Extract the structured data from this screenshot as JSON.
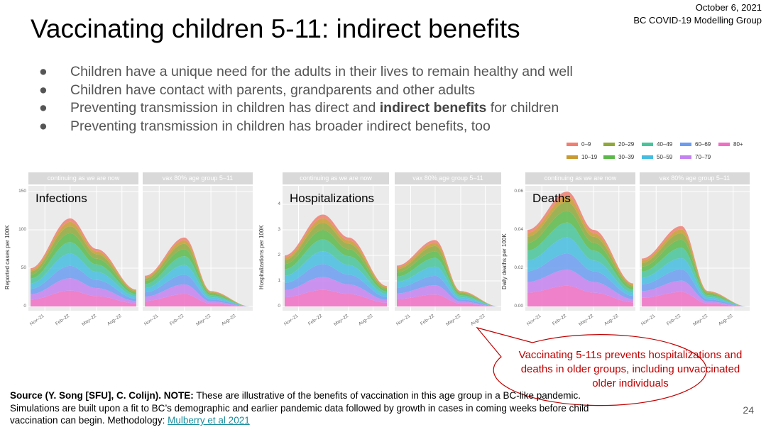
{
  "header": {
    "date": "October 6, 2021",
    "group": "BC COVID-19 Modelling Group"
  },
  "title": "Vaccinating children 5-11: indirect benefits",
  "bullets": [
    {
      "text": "Children have a unique need for the adults in their lives to remain healthy and well"
    },
    {
      "text": "Children have contact with parents, grandparents and other adults"
    },
    {
      "pre": "Preventing transmission in children has direct and ",
      "bold": "indirect benefits",
      "post": " for children"
    },
    {
      "text": "Preventing transmission in children has broader indirect benefits, too"
    }
  ],
  "bullet_glyph": "●",
  "legend": [
    {
      "label": "0–9",
      "color": "#f07f72"
    },
    {
      "label": "10–19",
      "color": "#c99a30"
    },
    {
      "label": "20–29",
      "color": "#8fa83a"
    },
    {
      "label": "30–39",
      "color": "#5cb84a"
    },
    {
      "label": "40–49",
      "color": "#48c49b"
    },
    {
      "label": "50–59",
      "color": "#45bde0"
    },
    {
      "label": "60–69",
      "color": "#6b9cf0"
    },
    {
      "label": "70–79",
      "color": "#c481f0"
    },
    {
      "label": "80+",
      "color": "#ef6fc3"
    }
  ],
  "panel_titles": [
    "continuing as we are now",
    "vax 80% age group 5–11"
  ],
  "x_ticks": [
    "Nov–21",
    "Feb–22",
    "May–22",
    "Aug–22"
  ],
  "charts": [
    {
      "label": "Infections",
      "ylabel": "Reported cases per 100K",
      "yticks": [
        "0",
        "50",
        "100",
        "150"
      ]
    },
    {
      "label": "Hospitalizations",
      "ylabel": "Hospitalizations per 100K",
      "yticks": [
        "0",
        "1",
        "2",
        "3",
        "4"
      ]
    },
    {
      "label": "Deaths",
      "ylabel": "Daily deaths per 100K",
      "yticks": [
        "0.00",
        "0.02",
        "0.04",
        "0.06"
      ]
    }
  ],
  "source": {
    "bold": "Source (Y. Song [SFU], C. Colijn). NOTE:",
    "text": " These are illustrative of the benefits of vaccination in this age group in a BC-like pandemic. Simulations are built upon a fit to BC’s demographic and earlier pandemic data followed by growth in cases in coming weeks before child vaccination can begin. Methodology: ",
    "link": "Mulberry et al 2021"
  },
  "callout": "Vaccinating 5-11s prevents hospitalizations and deaths in older groups, including unvaccinated older individuals",
  "page_number": "24",
  "chart_data": [
    {
      "type": "area",
      "title": "Infections",
      "ylabel": "Reported cases per 100K",
      "ylim": [
        0,
        150
      ],
      "categories": [
        "Nov–21",
        "Feb–22",
        "May–22",
        "Aug–22"
      ],
      "series": [
        {
          "name": "continuing as we are now",
          "values": [
            50,
            115,
            75,
            22
          ]
        },
        {
          "name": "vax 80% age group 5–11",
          "values": [
            40,
            90,
            20,
            0
          ]
        }
      ]
    },
    {
      "type": "area",
      "title": "Hospitalizations",
      "ylabel": "Hospitalizations per 100K",
      "ylim": [
        0,
        4.5
      ],
      "categories": [
        "Nov–21",
        "Feb–22",
        "May–22",
        "Aug–22"
      ],
      "series": [
        {
          "name": "continuing as we are now",
          "values": [
            2.0,
            3.6,
            2.7,
            0.8
          ]
        },
        {
          "name": "vax 80% age group 5–11",
          "values": [
            1.6,
            2.6,
            0.6,
            0.0
          ]
        }
      ]
    },
    {
      "type": "area",
      "title": "Deaths",
      "ylabel": "Daily deaths per 100K",
      "ylim": [
        0,
        0.06
      ],
      "categories": [
        "Nov–21",
        "Feb–22",
        "May–22",
        "Aug–22"
      ],
      "series": [
        {
          "name": "continuing as we are now",
          "values": [
            0.04,
            0.06,
            0.04,
            0.012
          ]
        },
        {
          "name": "vax 80% age group 5–11",
          "values": [
            0.025,
            0.042,
            0.008,
            0.0
          ]
        }
      ]
    }
  ]
}
